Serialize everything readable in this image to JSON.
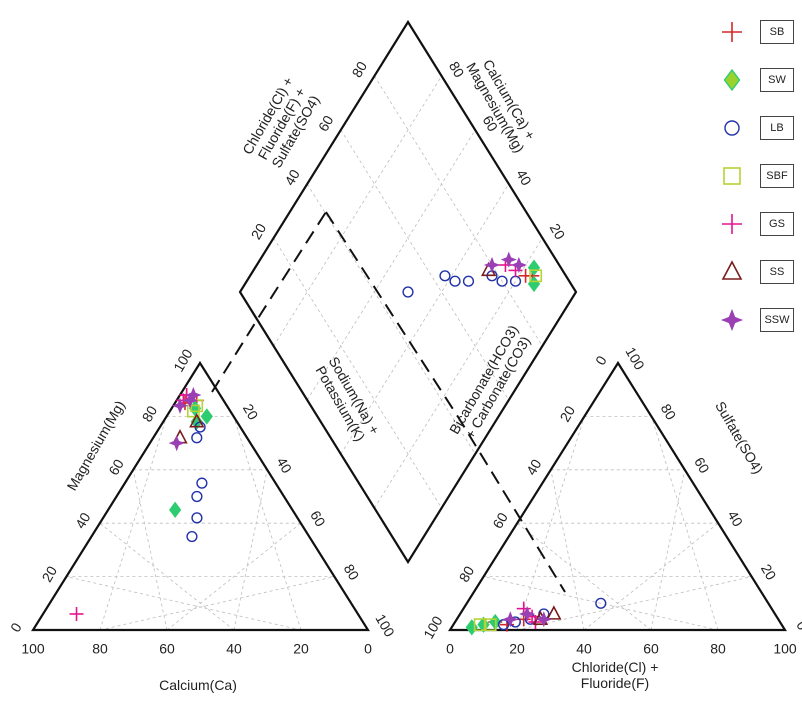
{
  "chart_data": {
    "type": "scatter",
    "title": "",
    "grid": true,
    "legend_position": "top-right",
    "cation_triangle": {
      "axes": {
        "bottom": {
          "label": "Calcium(Ca)",
          "ticks": [
            "100",
            "80",
            "60",
            "40",
            "20",
            "0"
          ]
        },
        "left": {
          "label": "Magnesium(Mg)",
          "ticks": [
            "0",
            "20",
            "40",
            "60",
            "80",
            "100"
          ]
        },
        "right": {
          "label": "Sodium(Na) + Potassium(K)",
          "label_lines": [
            "Sodium(Na) +",
            "Potassium(K)"
          ],
          "ticks": [
            "100",
            "80",
            "60",
            "40",
            "20"
          ]
        }
      }
    },
    "anion_triangle": {
      "axes": {
        "bottom": {
          "label": "Chloride(Cl) + Fluoride(F)",
          "label_lines": [
            "Chloride(Cl) +",
            "Fluoride(F)"
          ],
          "ticks": [
            "0",
            "20",
            "40",
            "60",
            "80",
            "100"
          ]
        },
        "left": {
          "label": "Bicarbonate(HCO3) + Carbonate(CO3)",
          "label_lines": [
            "Bicarbonate(HCO3)",
            "+ Carbonate(CO3)"
          ],
          "ticks": [
            "100",
            "80",
            "60",
            "40",
            "20",
            "0"
          ]
        },
        "right": {
          "label": "Sulfate(SO4)",
          "ticks": [
            "0",
            "20",
            "40",
            "60",
            "80",
            "100"
          ]
        }
      }
    },
    "diamond": {
      "upper_left": {
        "label": "Chloride(Cl) + Fluoride(F) + Sulfate(SO4)",
        "label_lines": [
          "Chloride(Cl) +",
          "Fluoride(F) +",
          "Sulfate(SO4)"
        ],
        "ticks": [
          "20",
          "40",
          "60",
          "80"
        ]
      },
      "upper_right": {
        "label": "Calcium(Ca) + Magnesium(Mg)",
        "label_lines": [
          "Calcium(Ca) +",
          "Magnesium(Mg)"
        ],
        "ticks": [
          "80",
          "60",
          "40",
          "20"
        ]
      }
    },
    "series": [
      {
        "name": "SB",
        "marker": "plus",
        "color": "#d62728",
        "cation": [
          [
            8,
            86
          ],
          [
            10,
            88
          ],
          [
            12,
            85
          ]
        ],
        "anion": [
          [
            12,
            3
          ],
          [
            16,
            2
          ],
          [
            20,
            4
          ]
        ],
        "diamond": [
          [
            16,
            90
          ],
          [
            18,
            88
          ]
        ]
      },
      {
        "name": "SW",
        "marker": "diamond",
        "color": "#2ecc71",
        "cation": [
          [
            8,
            80
          ],
          [
            10,
            83
          ],
          [
            12,
            78
          ],
          [
            35,
            45
          ]
        ],
        "anion": [
          [
            6,
            1
          ],
          [
            9,
            2
          ],
          [
            12,
            3
          ]
        ],
        "diamond": [
          [
            14,
            89
          ],
          [
            17,
            92
          ]
        ]
      },
      {
        "name": "LB",
        "marker": "circle",
        "color": "#2233aa",
        "cation": [
          [
            12,
            76
          ],
          [
            15,
            72
          ],
          [
            22,
            55
          ],
          [
            26,
            50
          ],
          [
            30,
            42
          ],
          [
            35,
            35
          ]
        ],
        "anion": [
          [
            15,
            2
          ],
          [
            18,
            3
          ],
          [
            22,
            4
          ],
          [
            25,
            6
          ],
          [
            40,
            10
          ]
        ],
        "diamond": [
          [
            20,
            84
          ],
          [
            24,
            80
          ],
          [
            28,
            78
          ],
          [
            34,
            70
          ],
          [
            38,
            66
          ],
          [
            42,
            64
          ],
          [
            50,
            50
          ]
        ]
      },
      {
        "name": "SBF",
        "marker": "square",
        "color": "#b5d334",
        "cation": [
          [
            9,
            84
          ],
          [
            11,
            82
          ]
        ],
        "anion": [
          [
            8,
            2
          ],
          [
            11,
            2
          ]
        ],
        "diamond": [
          [
            15,
            91
          ]
        ]
      },
      {
        "name": "GS",
        "marker": "plus",
        "color": "#e6138f",
        "cation": [
          [
            10,
            88
          ],
          [
            12,
            86
          ],
          [
            84,
            6
          ]
        ],
        "anion": [
          [
            18,
            8
          ],
          [
            22,
            5
          ],
          [
            24,
            3
          ]
        ],
        "diamond": [
          [
            22,
            86
          ],
          [
            26,
            84
          ]
        ]
      },
      {
        "name": "SS",
        "marker": "triangle",
        "color": "#7b1c1c",
        "cation": [
          [
            12,
            78
          ],
          [
            20,
            72
          ]
        ],
        "anion": [
          [
            25,
            4
          ],
          [
            28,
            6
          ]
        ],
        "diamond": [
          [
            30,
            78
          ]
        ]
      },
      {
        "name": "SSW",
        "marker": "star",
        "color": "#9b3fb4",
        "cation": [
          [
            8,
            88
          ],
          [
            10,
            86
          ],
          [
            14,
            84
          ],
          [
            22,
            70
          ]
        ],
        "anion": [
          [
            16,
            4
          ],
          [
            20,
            6
          ],
          [
            26,
            4
          ]
        ],
        "diamond": [
          [
            22,
            88
          ],
          [
            26,
            86
          ],
          [
            30,
            80
          ]
        ]
      }
    ]
  },
  "legend": {
    "items": [
      {
        "label": "SB",
        "marker": "plus",
        "color": "#d62728"
      },
      {
        "label": "SW",
        "marker": "diamond",
        "color": "#2ecc71",
        "fill": "#9bd22d"
      },
      {
        "label": "LB",
        "marker": "circle",
        "color": "#2233aa"
      },
      {
        "label": "SBF",
        "marker": "square",
        "color": "#b5d334"
      },
      {
        "label": "GS",
        "marker": "plus",
        "color": "#e6138f"
      },
      {
        "label": "SS",
        "marker": "triangle",
        "color": "#7b1c1c"
      },
      {
        "label": "SSW",
        "marker": "star",
        "color": "#9b3fb4"
      }
    ]
  }
}
